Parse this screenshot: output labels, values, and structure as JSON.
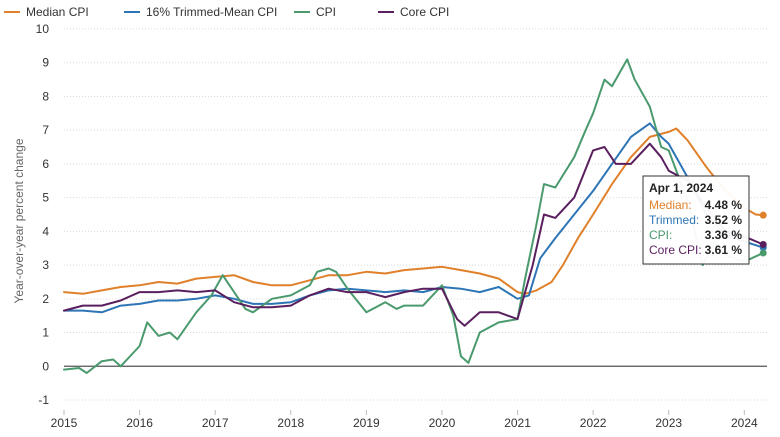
{
  "chart_data": {
    "type": "line",
    "title": "",
    "xlabel": "",
    "ylabel": "Year-over-year percent change",
    "xlim": [
      2015.0,
      2024.3
    ],
    "ylim": [
      -1,
      10
    ],
    "yticks": [
      "-1",
      "0",
      "1",
      "2",
      "3",
      "4",
      "5",
      "6",
      "7",
      "8",
      "9",
      "10"
    ],
    "xticks": [
      "2015",
      "2016",
      "2017",
      "2018",
      "2019",
      "2020",
      "2021",
      "2022",
      "2023",
      "2024"
    ],
    "legend_position": "top-left",
    "series": [
      {
        "name": "Median CPI",
        "color": "#e0802a",
        "points": [
          [
            2015.0,
            2.2
          ],
          [
            2015.25,
            2.15
          ],
          [
            2015.5,
            2.25
          ],
          [
            2015.75,
            2.35
          ],
          [
            2016.0,
            2.4
          ],
          [
            2016.25,
            2.5
          ],
          [
            2016.5,
            2.45
          ],
          [
            2016.75,
            2.6
          ],
          [
            2017.0,
            2.65
          ],
          [
            2017.25,
            2.7
          ],
          [
            2017.5,
            2.5
          ],
          [
            2017.75,
            2.4
          ],
          [
            2018.0,
            2.4
          ],
          [
            2018.25,
            2.55
          ],
          [
            2018.5,
            2.7
          ],
          [
            2018.75,
            2.7
          ],
          [
            2019.0,
            2.8
          ],
          [
            2019.25,
            2.75
          ],
          [
            2019.5,
            2.85
          ],
          [
            2019.75,
            2.9
          ],
          [
            2020.0,
            2.95
          ],
          [
            2020.25,
            2.85
          ],
          [
            2020.5,
            2.75
          ],
          [
            2020.75,
            2.6
          ],
          [
            2021.0,
            2.2
          ],
          [
            2021.1,
            2.15
          ],
          [
            2021.25,
            2.25
          ],
          [
            2021.45,
            2.5
          ],
          [
            2021.6,
            3.0
          ],
          [
            2021.8,
            3.8
          ],
          [
            2022.0,
            4.5
          ],
          [
            2022.25,
            5.4
          ],
          [
            2022.5,
            6.2
          ],
          [
            2022.75,
            6.8
          ],
          [
            2023.0,
            6.95
          ],
          [
            2023.1,
            7.05
          ],
          [
            2023.25,
            6.7
          ],
          [
            2023.5,
            5.9
          ],
          [
            2023.75,
            5.2
          ],
          [
            2024.0,
            4.7
          ],
          [
            2024.15,
            4.5
          ],
          [
            2024.25,
            4.48
          ]
        ]
      },
      {
        "name": "16% Trimmed-Mean CPI",
        "color": "#2e75b6",
        "points": [
          [
            2015.0,
            1.65
          ],
          [
            2015.25,
            1.65
          ],
          [
            2015.5,
            1.6
          ],
          [
            2015.75,
            1.8
          ],
          [
            2016.0,
            1.85
          ],
          [
            2016.25,
            1.95
          ],
          [
            2016.5,
            1.95
          ],
          [
            2016.75,
            2.0
          ],
          [
            2017.0,
            2.1
          ],
          [
            2017.25,
            2.0
          ],
          [
            2017.5,
            1.85
          ],
          [
            2017.75,
            1.85
          ],
          [
            2018.0,
            1.9
          ],
          [
            2018.25,
            2.1
          ],
          [
            2018.5,
            2.25
          ],
          [
            2018.75,
            2.3
          ],
          [
            2019.0,
            2.25
          ],
          [
            2019.25,
            2.2
          ],
          [
            2019.5,
            2.25
          ],
          [
            2019.75,
            2.2
          ],
          [
            2020.0,
            2.35
          ],
          [
            2020.25,
            2.3
          ],
          [
            2020.5,
            2.2
          ],
          [
            2020.75,
            2.35
          ],
          [
            2021.0,
            2.0
          ],
          [
            2021.15,
            2.1
          ],
          [
            2021.3,
            3.2
          ],
          [
            2021.5,
            3.8
          ],
          [
            2021.75,
            4.5
          ],
          [
            2022.0,
            5.2
          ],
          [
            2022.25,
            6.0
          ],
          [
            2022.5,
            6.8
          ],
          [
            2022.75,
            7.2
          ],
          [
            2022.9,
            6.8
          ],
          [
            2023.0,
            6.6
          ],
          [
            2023.25,
            5.6
          ],
          [
            2023.5,
            4.5
          ],
          [
            2023.75,
            3.9
          ],
          [
            2024.0,
            3.7
          ],
          [
            2024.25,
            3.52
          ]
        ]
      },
      {
        "name": "CPI",
        "color": "#4a9a6e",
        "points": [
          [
            2015.0,
            -0.1
          ],
          [
            2015.2,
            -0.05
          ],
          [
            2015.3,
            -0.2
          ],
          [
            2015.5,
            0.15
          ],
          [
            2015.65,
            0.2
          ],
          [
            2015.75,
            0.0
          ],
          [
            2016.0,
            0.6
          ],
          [
            2016.1,
            1.3
          ],
          [
            2016.25,
            0.9
          ],
          [
            2016.4,
            1.0
          ],
          [
            2016.5,
            0.8
          ],
          [
            2016.75,
            1.6
          ],
          [
            2016.95,
            2.1
          ],
          [
            2017.1,
            2.7
          ],
          [
            2017.25,
            2.2
          ],
          [
            2017.4,
            1.7
          ],
          [
            2017.5,
            1.6
          ],
          [
            2017.75,
            2.0
          ],
          [
            2018.0,
            2.1
          ],
          [
            2018.25,
            2.4
          ],
          [
            2018.35,
            2.8
          ],
          [
            2018.5,
            2.9
          ],
          [
            2018.6,
            2.8
          ],
          [
            2018.75,
            2.3
          ],
          [
            2019.0,
            1.6
          ],
          [
            2019.25,
            1.9
          ],
          [
            2019.4,
            1.7
          ],
          [
            2019.5,
            1.8
          ],
          [
            2019.75,
            1.8
          ],
          [
            2020.0,
            2.4
          ],
          [
            2020.15,
            1.5
          ],
          [
            2020.25,
            0.3
          ],
          [
            2020.35,
            0.1
          ],
          [
            2020.5,
            1.0
          ],
          [
            2020.75,
            1.3
          ],
          [
            2021.0,
            1.4
          ],
          [
            2021.1,
            2.6
          ],
          [
            2021.25,
            4.2
          ],
          [
            2021.35,
            5.4
          ],
          [
            2021.5,
            5.3
          ],
          [
            2021.75,
            6.2
          ],
          [
            2021.9,
            7.0
          ],
          [
            2022.0,
            7.5
          ],
          [
            2022.15,
            8.5
          ],
          [
            2022.25,
            8.3
          ],
          [
            2022.45,
            9.1
          ],
          [
            2022.55,
            8.5
          ],
          [
            2022.75,
            7.7
          ],
          [
            2022.9,
            6.5
          ],
          [
            2023.0,
            6.4
          ],
          [
            2023.25,
            4.9
          ],
          [
            2023.45,
            3.0
          ],
          [
            2023.6,
            3.7
          ],
          [
            2023.75,
            3.3
          ],
          [
            2024.0,
            3.1
          ],
          [
            2024.25,
            3.36
          ]
        ]
      },
      {
        "name": "Core CPI",
        "color": "#5a1f5e",
        "points": [
          [
            2015.0,
            1.65
          ],
          [
            2015.25,
            1.8
          ],
          [
            2015.5,
            1.8
          ],
          [
            2015.75,
            1.95
          ],
          [
            2016.0,
            2.2
          ],
          [
            2016.25,
            2.2
          ],
          [
            2016.5,
            2.25
          ],
          [
            2016.75,
            2.2
          ],
          [
            2017.0,
            2.25
          ],
          [
            2017.25,
            1.9
          ],
          [
            2017.5,
            1.75
          ],
          [
            2017.75,
            1.75
          ],
          [
            2018.0,
            1.8
          ],
          [
            2018.25,
            2.1
          ],
          [
            2018.5,
            2.3
          ],
          [
            2018.75,
            2.2
          ],
          [
            2019.0,
            2.2
          ],
          [
            2019.25,
            2.05
          ],
          [
            2019.5,
            2.2
          ],
          [
            2019.75,
            2.3
          ],
          [
            2020.0,
            2.3
          ],
          [
            2020.2,
            1.4
          ],
          [
            2020.3,
            1.2
          ],
          [
            2020.5,
            1.6
          ],
          [
            2020.75,
            1.6
          ],
          [
            2021.0,
            1.4
          ],
          [
            2021.2,
            3.0
          ],
          [
            2021.35,
            4.5
          ],
          [
            2021.5,
            4.4
          ],
          [
            2021.75,
            5.0
          ],
          [
            2022.0,
            6.4
          ],
          [
            2022.15,
            6.5
          ],
          [
            2022.3,
            6.0
          ],
          [
            2022.5,
            6.0
          ],
          [
            2022.75,
            6.6
          ],
          [
            2022.9,
            6.2
          ],
          [
            2023.0,
            5.8
          ],
          [
            2023.25,
            5.5
          ],
          [
            2023.5,
            4.7
          ],
          [
            2023.75,
            4.0
          ],
          [
            2024.0,
            3.85
          ],
          [
            2024.25,
            3.61
          ]
        ]
      }
    ],
    "tooltip": {
      "title": "Apr 1, 2024",
      "rows": [
        {
          "label": "Median:",
          "value": "4.48 %",
          "color": "#e0802a"
        },
        {
          "label": "Trimmed:",
          "value": "3.52 %",
          "color": "#2e75b6"
        },
        {
          "label": "CPI:",
          "value": "3.36 %",
          "color": "#4a9a6e"
        },
        {
          "label": "Core CPI:",
          "value": "3.61 %",
          "color": "#5a1f5e"
        }
      ]
    },
    "colors": {
      "grid": "#d9d9d9",
      "zero_line": "#555555"
    }
  }
}
